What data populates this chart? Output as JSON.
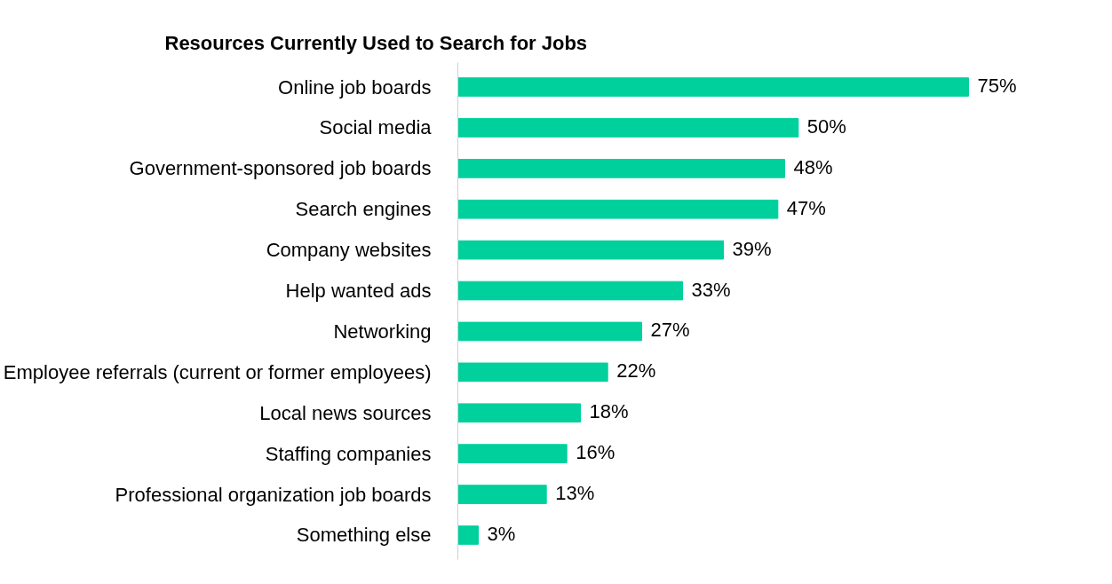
{
  "chart_data": {
    "type": "bar",
    "orientation": "horizontal",
    "title": "Resources Currently Used to Search for Jobs",
    "categories": [
      "Online job boards",
      "Social media",
      "Government-sponsored job boards",
      "Search engines",
      "Company websites",
      "Help wanted ads",
      "Networking",
      "Employee referrals (current or former employees)",
      "Local news sources",
      "Staffing companies",
      "Professional organization job boards",
      "Something else"
    ],
    "values": [
      75,
      50,
      48,
      47,
      39,
      33,
      27,
      22,
      18,
      16,
      13,
      3
    ],
    "value_labels": [
      "75%",
      "50%",
      "48%",
      "47%",
      "39%",
      "33%",
      "27%",
      "22%",
      "18%",
      "16%",
      "13%",
      "3%"
    ],
    "color": "#00d09c",
    "grid": false
  }
}
